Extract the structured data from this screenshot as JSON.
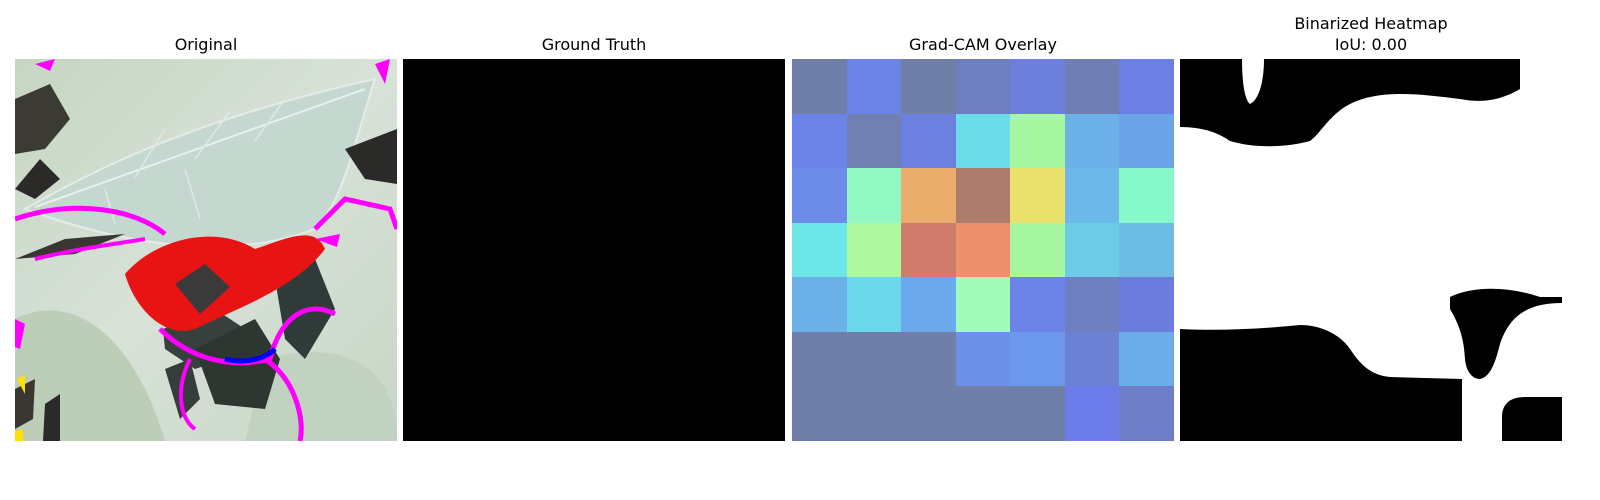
{
  "panels": {
    "original": {
      "title": "Original"
    },
    "ground_truth": {
      "title": "Ground Truth",
      "fill_color": "#000000"
    },
    "gradcam": {
      "title": "Grad-CAM Overlay",
      "grid_rows": 7,
      "grid_cols": 7,
      "cells": [
        [
          "#6f7fa8",
          "#6c84e8",
          "#6f7fa8",
          "#6e7fc0",
          "#6c7fdc",
          "#6f7fb4",
          "#6c80e4"
        ],
        [
          "#6c84e8",
          "#7180b0",
          "#6c80e0",
          "#6cdce8",
          "#a6f6a2",
          "#6cb0e8",
          "#6ca4e8"
        ],
        [
          "#6c8ce8",
          "#92f8c4",
          "#eaad6c",
          "#ac7c6c",
          "#eae26c",
          "#6cb8e8",
          "#86f8cc"
        ],
        [
          "#6ce6e6",
          "#aef8a0",
          "#d07c6c",
          "#ee906c",
          "#a6f6a2",
          "#6ccce8",
          "#6cbce4"
        ],
        [
          "#6cb0e8",
          "#6cd8ec",
          "#6ca8ec",
          "#a0fcb8",
          "#6c84e8",
          "#6f7fc0",
          "#6c7cdc"
        ],
        [
          "#6f7fa8",
          "#6f7fa8",
          "#6f7fa8",
          "#6c90e8",
          "#6c98ec",
          "#6c80d4",
          "#6cace8"
        ],
        [
          "#6f7fa8",
          "#6f7fa8",
          "#6f7fa8",
          "#6f7fa8",
          "#6f7fa8",
          "#6c7ce8",
          "#6f7cc8"
        ]
      ]
    },
    "binarized": {
      "title_line1": "Binarized Heatmap",
      "title_line2": "IoU: 0.00"
    }
  },
  "colors": {
    "mask_black": "#000000",
    "mask_white": "#ffffff"
  }
}
